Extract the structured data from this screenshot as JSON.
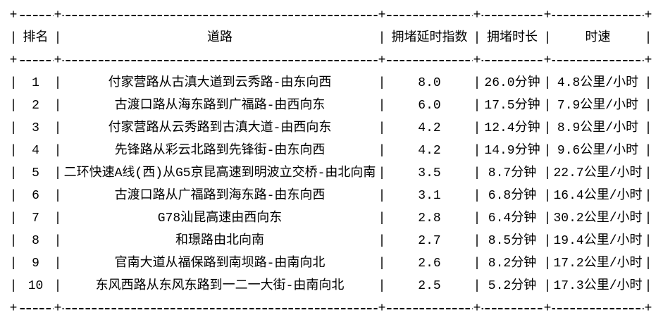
{
  "colors": {
    "background": "#ffffff",
    "text": "#000000",
    "border": "#000000"
  },
  "table": {
    "columns": [
      {
        "key": "rank",
        "label": "排名"
      },
      {
        "key": "road",
        "label": "道路"
      },
      {
        "key": "delay_index",
        "label": "拥堵延时指数"
      },
      {
        "key": "duration",
        "label": "拥堵时长"
      },
      {
        "key": "speed",
        "label": "时速"
      }
    ],
    "rows": [
      {
        "rank": "1",
        "road": "付家营路从古滇大道到云秀路-由东向西",
        "delay_index": "8.0",
        "duration": "26.0分钟",
        "speed": "4.8公里/小时"
      },
      {
        "rank": "2",
        "road": "古渡口路从海东路到广福路-由西向东",
        "delay_index": "6.0",
        "duration": "17.5分钟",
        "speed": "7.9公里/小时"
      },
      {
        "rank": "3",
        "road": "付家营路从云秀路到古滇大道-由西向东",
        "delay_index": "4.2",
        "duration": "12.4分钟",
        "speed": "8.9公里/小时"
      },
      {
        "rank": "4",
        "road": "先锋路从彩云北路到先锋街-由东向西",
        "delay_index": "4.2",
        "duration": "14.9分钟",
        "speed": "9.6公里/小时"
      },
      {
        "rank": "5",
        "road": "二环快速A线(西)从G5京昆高速到明波立交桥-由北向南",
        "delay_index": "3.5",
        "duration": "8.7分钟",
        "speed": "22.7公里/小时"
      },
      {
        "rank": "6",
        "road": "古渡口路从广福路到海东路-由东向西",
        "delay_index": "3.1",
        "duration": "6.8分钟",
        "speed": "16.4公里/小时"
      },
      {
        "rank": "7",
        "road": "G78汕昆高速由西向东",
        "delay_index": "2.8",
        "duration": "6.4分钟",
        "speed": "30.2公里/小时"
      },
      {
        "rank": "8",
        "road": "和璟路由北向南",
        "delay_index": "2.7",
        "duration": "8.5分钟",
        "speed": "19.4公里/小时"
      },
      {
        "rank": "9",
        "road": "官南大道从福保路到南坝路-由南向北",
        "delay_index": "2.6",
        "duration": "8.2分钟",
        "speed": "17.2公里/小时"
      },
      {
        "rank": "10",
        "road": "东风西路从东风东路到一二一大街-由南向北",
        "delay_index": "2.5",
        "duration": "5.2分钟",
        "speed": "17.3公里/小时"
      }
    ]
  },
  "glyphs": {
    "vertical_bar": "|",
    "corner_plus": "+"
  }
}
